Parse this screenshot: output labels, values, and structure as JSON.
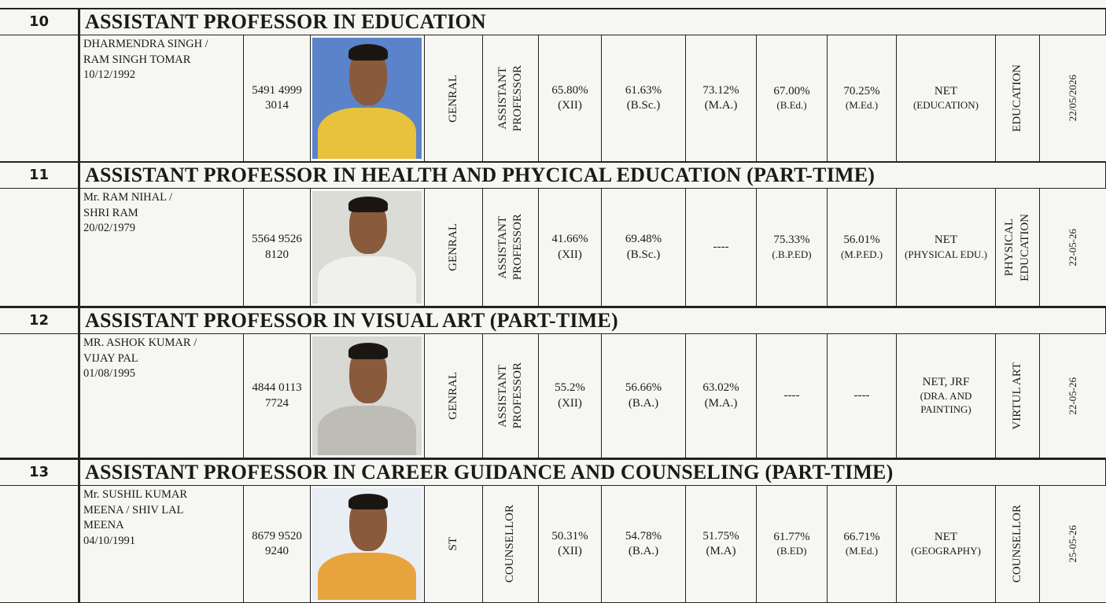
{
  "sections": [
    {
      "number": "10",
      "title": "ASSISTANT PROFESSOR IN EDUCATION",
      "row": {
        "name_lines": [
          "DHARMENDRA SINGH /",
          "RAM SINGH TOMAR"
        ],
        "dob": "10/12/1992",
        "id_lines": [
          "5491 4999",
          "3014"
        ],
        "category": "GENRAL",
        "post_lines": [
          "ASSISTANT",
          "PROFESSOR"
        ],
        "scores": [
          [
            "65.80%",
            "(XII)"
          ],
          [
            "61.63%",
            "(B.Sc.)"
          ],
          [
            "73.12%",
            "(M.A.)"
          ],
          [
            "67.00%",
            "(B.Ed.)"
          ],
          [
            "70.25%",
            "(M.Ed.)"
          ]
        ],
        "qualification": [
          "NET",
          "(EDUCATION)"
        ],
        "subject": [
          "EDUCATION"
        ],
        "date": "22/05/2026"
      }
    },
    {
      "number": "11",
      "title": "ASSISTANT PROFESSOR IN HEALTH AND PHYCICAL EDUCATION (PART-TIME)",
      "row": {
        "name_lines": [
          "Mr. RAM NIHAL /",
          "SHRI RAM"
        ],
        "dob": "20/02/1979",
        "id_lines": [
          "5564 9526",
          "8120"
        ],
        "category": "GENRAL",
        "post_lines": [
          "ASSISTANT",
          "PROFESSOR"
        ],
        "scores": [
          [
            "41.66%",
            "(XII)"
          ],
          [
            "69.48%",
            "(B.Sc.)"
          ],
          [
            "----"
          ],
          [
            "75.33%",
            "(.B.P.ED)"
          ],
          [
            "56.01%",
            "(M.P.ED.)"
          ]
        ],
        "qualification": [
          "NET",
          "(PHYSICAL EDU.)"
        ],
        "subject": [
          "PHYSICAL",
          "EDUCATION"
        ],
        "date": "22-05-26"
      }
    },
    {
      "number": "12",
      "title": "ASSISTANT PROFESSOR IN VISUAL ART (PART-TIME)",
      "row": {
        "name_lines": [
          "MR. ASHOK KUMAR /",
          "VIJAY PAL"
        ],
        "dob": "01/08/1995",
        "id_lines": [
          "4844 0113",
          "7724"
        ],
        "category": "GENRAL",
        "post_lines": [
          "ASSISTANT",
          "PROFESSOR"
        ],
        "scores": [
          [
            "55.2%",
            "(XII)"
          ],
          [
            "56.66%",
            "(B.A.)"
          ],
          [
            "63.02%",
            "(M.A.)"
          ],
          [
            "----"
          ],
          [
            "----"
          ]
        ],
        "qualification": [
          "NET, JRF",
          "(DRA. AND",
          "PAINTING)"
        ],
        "subject": [
          "VIRTUL ART"
        ],
        "date": "22-05-26"
      }
    },
    {
      "number": "13",
      "title": "ASSISTANT PROFESSOR IN CAREER GUIDANCE AND COUNSELING (PART-TIME)",
      "row": {
        "name_lines": [
          "Mr. SUSHIL KUMAR",
          "MEENA  /  SHIV LAL",
          "MEENA"
        ],
        "dob": "04/10/1991",
        "id_lines": [
          "8679 9520",
          "9240"
        ],
        "category": "ST",
        "post_lines": [
          "COUNSELLOR"
        ],
        "scores": [
          [
            "50.31%",
            "(XII)"
          ],
          [
            "54.78%",
            "(B.A.)"
          ],
          [
            "51.75%",
            "(M.A)"
          ],
          [
            "61.77%",
            "(B.ED)"
          ],
          [
            "66.71%",
            "(M.Ed.)"
          ]
        ],
        "qualification": [
          "NET",
          "(GEOGRAPHY)"
        ],
        "subject": [
          "COUNSELLOR"
        ],
        "date": "25-05-26"
      }
    }
  ]
}
